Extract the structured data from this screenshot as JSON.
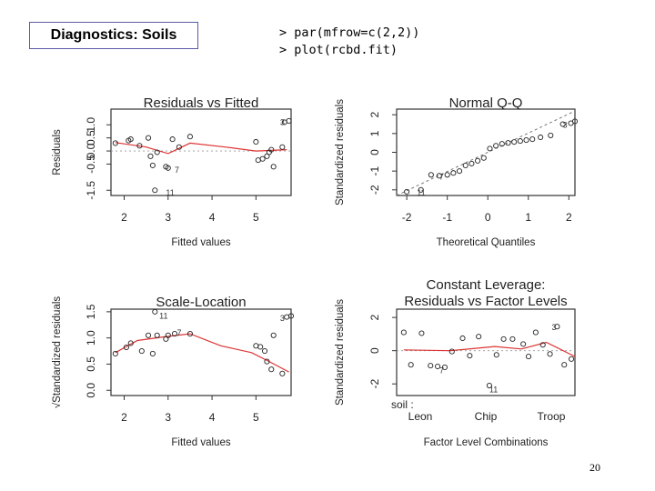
{
  "slide": {
    "title": "Diagnostics: Soils",
    "code_lines": [
      "> par(mfrow=c(2,2))",
      "> plot(rcbd.fit)"
    ],
    "page_number": "20"
  },
  "chart_data": [
    {
      "type": "scatter",
      "title": "Residuals vs Fitted",
      "xlabel": "Fitted values",
      "ylabel": "Residuals",
      "xlim": [
        1.7,
        5.8
      ],
      "ylim": [
        -1.7,
        1.6
      ],
      "xticks": [
        2,
        3,
        4,
        5
      ],
      "yticks": [
        -1.5,
        -0.5,
        0.0,
        0.5,
        1.0
      ],
      "ytick_labels": [
        "-1.5",
        "-0.5",
        "0.0",
        "0.5",
        "1.0"
      ],
      "points": [
        [
          1.8,
          0.3
        ],
        [
          2.1,
          0.4
        ],
        [
          2.15,
          0.45
        ],
        [
          2.35,
          0.2
        ],
        [
          2.55,
          0.5
        ],
        [
          2.6,
          -0.2
        ],
        [
          2.65,
          -0.55
        ],
        [
          2.75,
          -0.05
        ],
        [
          2.7,
          -1.5
        ],
        [
          2.95,
          -0.6
        ],
        [
          3.0,
          -0.65
        ],
        [
          3.1,
          0.45
        ],
        [
          3.25,
          0.15
        ],
        [
          3.5,
          0.55
        ],
        [
          5.0,
          0.35
        ],
        [
          5.05,
          -0.35
        ],
        [
          5.15,
          -0.3
        ],
        [
          5.25,
          -0.2
        ],
        [
          5.3,
          -0.05
        ],
        [
          5.35,
          0.05
        ],
        [
          5.4,
          -0.6
        ],
        [
          5.6,
          0.15
        ],
        [
          5.65,
          1.1
        ],
        [
          5.75,
          1.15
        ]
      ],
      "smooth": [
        [
          1.8,
          0.32
        ],
        [
          2.5,
          0.15
        ],
        [
          3.0,
          -0.1
        ],
        [
          3.5,
          0.3
        ],
        [
          4.3,
          0.15
        ],
        [
          5.0,
          0.0
        ],
        [
          5.7,
          0.05
        ]
      ],
      "annotations": [
        {
          "text": "3",
          "x": 5.55,
          "y": 1.1
        },
        {
          "text": "7",
          "x": 3.15,
          "y": -0.72
        },
        {
          "text": "11",
          "x": 2.95,
          "y": -1.6
        }
      ]
    },
    {
      "type": "scatter",
      "title": "Normal Q-Q",
      "xlabel": "Theoretical Quantiles",
      "ylabel": "Standardized residuals",
      "xlim": [
        -2.25,
        2.15
      ],
      "ylim": [
        -2.3,
        2.3
      ],
      "xticks": [
        -2,
        -1,
        0,
        1,
        2
      ],
      "yticks": [
        -2,
        -1,
        0,
        1,
        2
      ],
      "ytick_labels": [
        "-2",
        "-1",
        "0",
        "1",
        "2"
      ],
      "points": [
        [
          -2.0,
          -2.1
        ],
        [
          -1.65,
          -2.0
        ],
        [
          -1.4,
          -1.2
        ],
        [
          -1.2,
          -1.25
        ],
        [
          -1.0,
          -1.2
        ],
        [
          -0.85,
          -1.1
        ],
        [
          -0.7,
          -1.0
        ],
        [
          -0.55,
          -0.7
        ],
        [
          -0.4,
          -0.6
        ],
        [
          -0.25,
          -0.45
        ],
        [
          -0.1,
          -0.3
        ],
        [
          0.05,
          0.2
        ],
        [
          0.2,
          0.35
        ],
        [
          0.35,
          0.45
        ],
        [
          0.5,
          0.5
        ],
        [
          0.65,
          0.55
        ],
        [
          0.8,
          0.6
        ],
        [
          0.95,
          0.65
        ],
        [
          1.1,
          0.7
        ],
        [
          1.3,
          0.8
        ],
        [
          1.55,
          0.9
        ],
        [
          1.85,
          1.5
        ],
        [
          2.05,
          1.55
        ],
        [
          2.15,
          1.65
        ]
      ],
      "reference_line": [
        [
          -2.25,
          -2.3
        ],
        [
          2.15,
          2.2
        ]
      ],
      "annotations": [
        {
          "text": "3",
          "x": 1.85,
          "y": 1.45
        },
        {
          "text": "7",
          "x": -1.2,
          "y": -1.3
        },
        {
          "text": "11",
          "x": -1.75,
          "y": -2.15
        }
      ]
    },
    {
      "type": "scatter",
      "title": "Scale-Location",
      "xlabel": "Fitted values",
      "ylabel": "√Standardized residuals",
      "xlim": [
        1.7,
        5.8
      ],
      "ylim": [
        -0.1,
        1.55
      ],
      "xticks": [
        2,
        3,
        4,
        5
      ],
      "yticks": [
        0.0,
        0.5,
        1.0,
        1.5
      ],
      "ytick_labels": [
        "0.0",
        "0.5",
        "1.0",
        "1.5"
      ],
      "points": [
        [
          1.8,
          0.7
        ],
        [
          2.05,
          0.82
        ],
        [
          2.15,
          0.9
        ],
        [
          2.4,
          0.75
        ],
        [
          2.55,
          1.05
        ],
        [
          2.65,
          0.7
        ],
        [
          2.75,
          1.05
        ],
        [
          2.7,
          1.5
        ],
        [
          2.95,
          0.98
        ],
        [
          3.0,
          1.05
        ],
        [
          3.15,
          1.08
        ],
        [
          3.5,
          1.08
        ],
        [
          5.0,
          0.85
        ],
        [
          5.1,
          0.83
        ],
        [
          5.2,
          0.75
        ],
        [
          5.25,
          0.55
        ],
        [
          5.35,
          0.4
        ],
        [
          5.4,
          1.05
        ],
        [
          5.6,
          0.32
        ],
        [
          5.7,
          1.4
        ],
        [
          5.8,
          1.42
        ]
      ],
      "smooth": [
        [
          1.8,
          0.72
        ],
        [
          2.3,
          0.95
        ],
        [
          2.9,
          1.02
        ],
        [
          3.5,
          1.08
        ],
        [
          4.2,
          0.85
        ],
        [
          4.9,
          0.72
        ],
        [
          5.3,
          0.55
        ],
        [
          5.75,
          0.35
        ]
      ],
      "annotations": [
        {
          "text": "11",
          "x": 2.8,
          "y": 1.42
        },
        {
          "text": "7",
          "x": 3.2,
          "y": 1.1
        },
        {
          "text": "3",
          "x": 5.55,
          "y": 1.38
        }
      ]
    },
    {
      "type": "scatter",
      "title": "Constant Leverage:",
      "subtitle": "Residuals vs Factor Levels",
      "xlabel": "Factor Level Combinations",
      "ylabel": "Standardized residuals",
      "factor_name": "soil :",
      "categories": [
        "Leon",
        "Chip",
        "Troop"
      ],
      "xlim": [
        0,
        1
      ],
      "ylim": [
        -2.7,
        2.5
      ],
      "yticks": [
        -2,
        0,
        2
      ],
      "ytick_labels": [
        "-2",
        "0",
        "2"
      ],
      "points": [
        [
          0.04,
          1.1
        ],
        [
          0.08,
          -0.85
        ],
        [
          0.14,
          1.05
        ],
        [
          0.19,
          -0.9
        ],
        [
          0.23,
          -0.95
        ],
        [
          0.27,
          -1.0
        ],
        [
          0.31,
          -0.05
        ],
        [
          0.37,
          0.75
        ],
        [
          0.41,
          -0.3
        ],
        [
          0.46,
          0.85
        ],
        [
          0.52,
          -2.1
        ],
        [
          0.56,
          -0.25
        ],
        [
          0.6,
          0.7
        ],
        [
          0.65,
          0.7
        ],
        [
          0.71,
          0.4
        ],
        [
          0.74,
          -0.35
        ],
        [
          0.78,
          1.1
        ],
        [
          0.82,
          0.35
        ],
        [
          0.86,
          -0.2
        ],
        [
          0.9,
          1.45
        ],
        [
          0.94,
          -0.85
        ],
        [
          0.98,
          -0.5
        ]
      ],
      "smooth": [
        [
          0.04,
          0.05
        ],
        [
          0.3,
          0.0
        ],
        [
          0.55,
          0.25
        ],
        [
          0.7,
          0.1
        ],
        [
          0.84,
          0.5
        ],
        [
          1.0,
          -0.35
        ]
      ],
      "annotations": [
        {
          "text": "3",
          "x": 0.87,
          "y": 1.4
        },
        {
          "text": "7",
          "x": 0.24,
          "y": -1.2
        },
        {
          "text": "11",
          "x": 0.52,
          "y": -2.35
        }
      ]
    }
  ]
}
